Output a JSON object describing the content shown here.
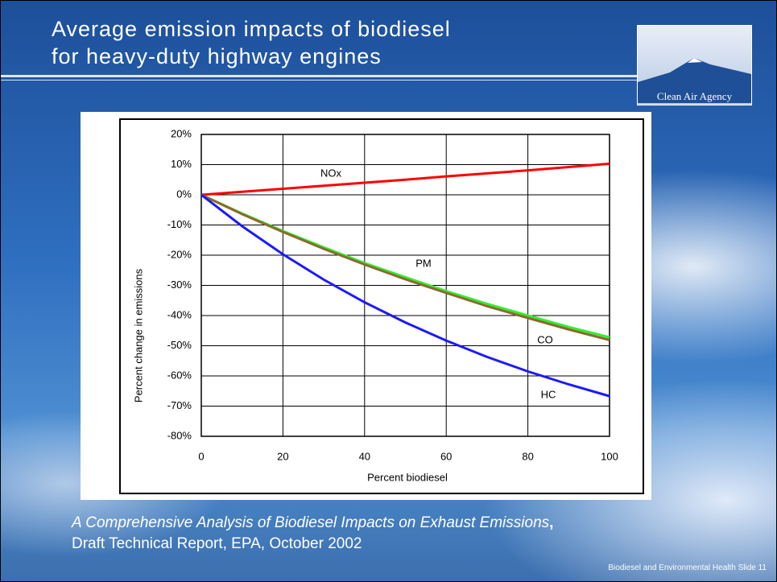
{
  "slide": {
    "title": [
      "Average emission impacts of biodiesel",
      "for heavy-duty highway engines"
    ],
    "logo_text": "Clean Air Agency",
    "citation": {
      "title": "A Comprehensive Analysis of Biodiesel Impacts on Exhaust Emissions",
      "separator": ",",
      "details": "Draft Technical Report, EPA, October 2002"
    },
    "footer": "Biodiesel and Environmental Health  Slide 11"
  },
  "chart_data": {
    "type": "line",
    "x_label": "Percent biodiesel",
    "y_label": "Percent change in emissions",
    "x": [
      0,
      10,
      20,
      30,
      40,
      50,
      60,
      70,
      80,
      90,
      100
    ],
    "xlim": [
      0,
      100
    ],
    "xticks": [
      0,
      20,
      40,
      60,
      80,
      100
    ],
    "ylim": [
      -80,
      20
    ],
    "yticks": [
      {
        "value": -80,
        "label": "-80%"
      },
      {
        "value": -70,
        "label": "-70%"
      },
      {
        "value": -60,
        "label": "-60%"
      },
      {
        "value": -50,
        "label": "-50%"
      },
      {
        "value": -40,
        "label": "-40%"
      },
      {
        "value": -30,
        "label": "-30%"
      },
      {
        "value": -20,
        "label": "-20%"
      },
      {
        "value": -10,
        "label": "-10%"
      },
      {
        "value": 0,
        "label": "0%"
      },
      {
        "value": 10,
        "label": "10%"
      },
      {
        "value": 20,
        "label": "20%"
      }
    ],
    "grid": true,
    "series": [
      {
        "name": "NOx",
        "color": "#ff0000",
        "values": [
          0,
          1.0,
          2.0,
          3.0,
          4.0,
          5.0,
          6.1,
          7.1,
          8.1,
          9.2,
          10.3
        ]
      },
      {
        "name": "PM",
        "color": "#33ee33",
        "values": [
          0,
          -6.2,
          -12.0,
          -17.4,
          -22.6,
          -27.3,
          -31.9,
          -36.1,
          -40.0,
          -43.8,
          -47.2
        ]
      },
      {
        "name": "CO",
        "color": "#8b6a2b",
        "values": [
          0,
          -6.4,
          -12.3,
          -17.9,
          -23.1,
          -28.0,
          -32.5,
          -36.9,
          -40.8,
          -44.6,
          -48.1
        ]
      },
      {
        "name": "HC",
        "color": "#1a1aff",
        "values": [
          0,
          -10.4,
          -19.7,
          -28.1,
          -35.6,
          -42.3,
          -48.3,
          -53.7,
          -58.5,
          -62.8,
          -66.7
        ]
      }
    ]
  }
}
